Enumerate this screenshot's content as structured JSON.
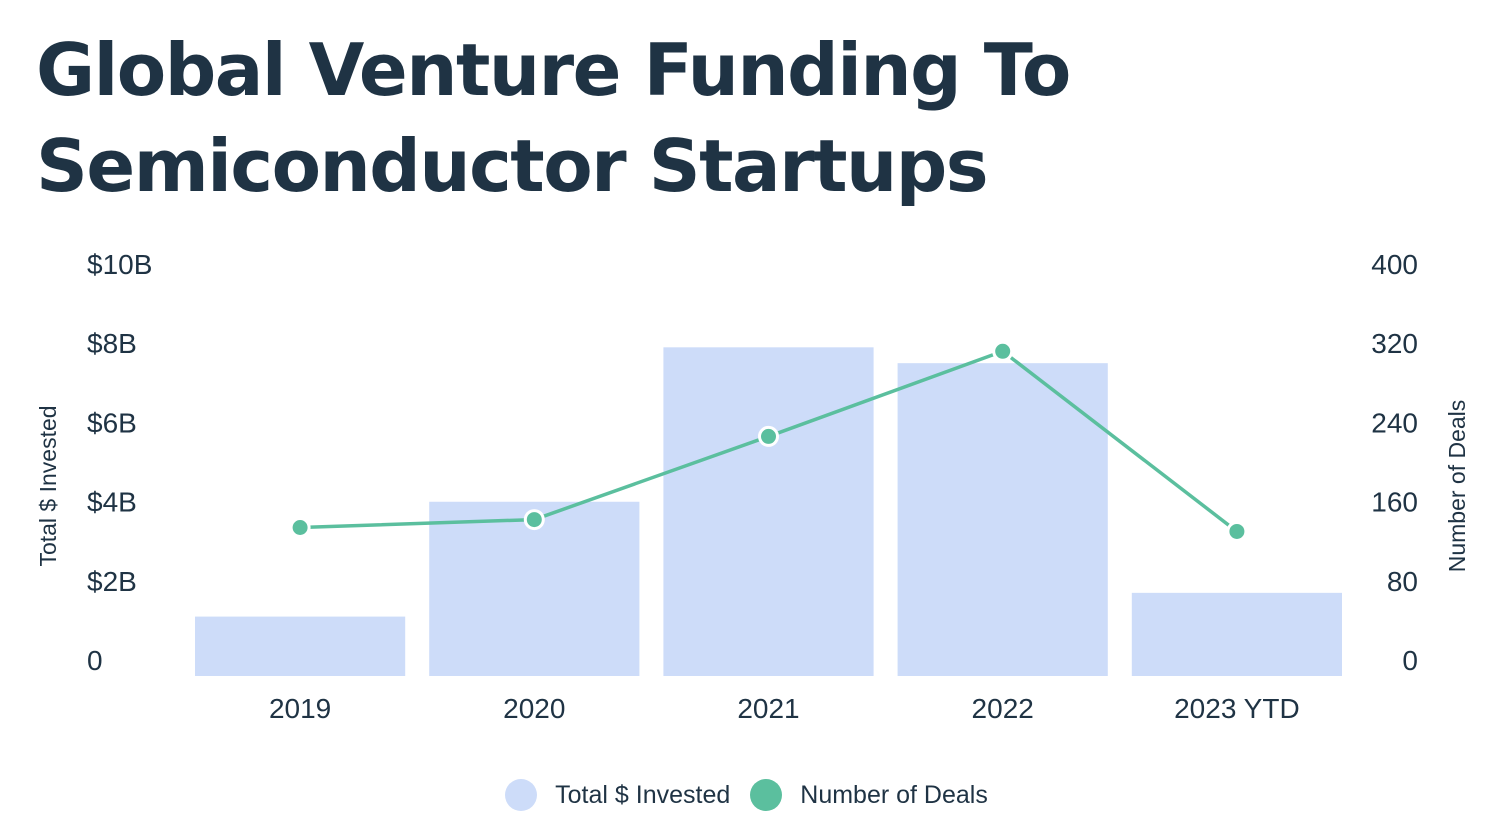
{
  "title_line1": "Global Venture Funding To",
  "title_line2": "Semiconductor Startups",
  "chart_data": {
    "type": "bar",
    "categories": [
      "2019",
      "2020",
      "2021",
      "2022",
      "2023 YTD"
    ],
    "series": [
      {
        "name": "Total $ Invested",
        "type": "bar",
        "axis": "left",
        "color": "#cddcf9",
        "values": [
          1.5,
          4.4,
          8.3,
          7.9,
          2.1
        ]
      },
      {
        "name": "Number of Deals",
        "type": "line",
        "axis": "right",
        "color": "#5bbf9e",
        "values": [
          150,
          158,
          242,
          328,
          146
        ]
      }
    ],
    "y_left": {
      "label": "Total $ Invested",
      "range": [
        0,
        10
      ],
      "ticks": [
        0,
        2,
        4,
        6,
        8,
        10
      ],
      "tick_labels": [
        "0",
        "$2B",
        "$4B",
        "$6B",
        "$8B",
        "$10B"
      ]
    },
    "y_right": {
      "label": "Number of Deals",
      "range": [
        0,
        400
      ],
      "ticks": [
        0,
        80,
        160,
        240,
        320,
        400
      ],
      "tick_labels": [
        "0",
        "80",
        "160",
        "240",
        "320",
        "400"
      ]
    },
    "grid": false,
    "legend_position": "bottom-center"
  },
  "legend": [
    {
      "label": "Total $ Invested",
      "color": "#cddcf9"
    },
    {
      "label": "Number of Deals",
      "color": "#5bbf9e"
    }
  ]
}
